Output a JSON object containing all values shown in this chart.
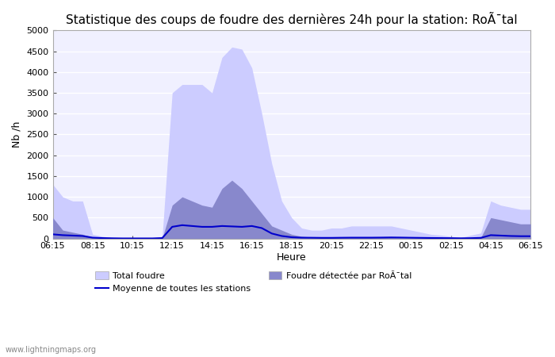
{
  "title": "Statistique des coups de foudre des dernières 24h pour la station: RoÃ¯tal",
  "ylabel": "Nb /h",
  "xlabel": "Heure",
  "watermark": "www.lightningmaps.org",
  "x_labels": [
    "06:15",
    "08:15",
    "10:15",
    "12:15",
    "14:15",
    "16:15",
    "18:15",
    "20:15",
    "22:15",
    "00:15",
    "02:15",
    "04:15",
    "06:15"
  ],
  "ylim": [
    0,
    5000
  ],
  "yticks": [
    0,
    500,
    1000,
    1500,
    2000,
    2500,
    3000,
    3500,
    4000,
    4500,
    5000
  ],
  "background_color": "#ffffff",
  "plot_bg_color": "#f0f0ff",
  "total_foudre_color": "#ccccff",
  "total_foudre_edge": "#ccccff",
  "local_foudre_color": "#8888cc",
  "local_foudre_edge": "#8888cc",
  "mean_line_color": "#0000cc",
  "grid_color": "#ffffff",
  "legend_labels": [
    "Total foudre",
    "Moyenne de toutes les stations",
    "Foudre détectée par RoÃ¯tal"
  ],
  "total_foudre_x": [
    0,
    1,
    2,
    3,
    4,
    5,
    6,
    7,
    8,
    9,
    10,
    11,
    12,
    13,
    14,
    15,
    16,
    17,
    18,
    19,
    20,
    21,
    22,
    23,
    24,
    25,
    26,
    27,
    28,
    29,
    30,
    31,
    32,
    33,
    34,
    35,
    36,
    37,
    38,
    39,
    40,
    41,
    42,
    43,
    44,
    45,
    46,
    47,
    48
  ],
  "total_foudre_y": [
    1300,
    1000,
    900,
    900,
    100,
    50,
    20,
    10,
    10,
    10,
    10,
    50,
    3500,
    3700,
    3700,
    3700,
    3500,
    4350,
    4600,
    4550,
    4100,
    3000,
    1800,
    900,
    500,
    250,
    200,
    200,
    250,
    250,
    300,
    300,
    300,
    300,
    300,
    250,
    200,
    150,
    100,
    80,
    50,
    20,
    80,
    130,
    900,
    800,
    750,
    700,
    700
  ],
  "local_foudre_x": [
    0,
    1,
    2,
    3,
    4,
    5,
    6,
    7,
    8,
    9,
    10,
    11,
    12,
    13,
    14,
    15,
    16,
    17,
    18,
    19,
    20,
    21,
    22,
    23,
    24,
    25,
    26,
    27,
    28,
    29,
    30,
    31,
    32,
    33,
    34,
    35,
    36,
    37,
    38,
    39,
    40,
    41,
    42,
    43,
    44,
    45,
    46,
    47,
    48
  ],
  "local_foudre_y": [
    500,
    200,
    150,
    100,
    30,
    10,
    5,
    2,
    2,
    2,
    2,
    10,
    800,
    1000,
    900,
    800,
    750,
    1200,
    1400,
    1200,
    900,
    600,
    300,
    200,
    100,
    50,
    30,
    25,
    20,
    20,
    20,
    20,
    20,
    20,
    20,
    15,
    10,
    10,
    10,
    10,
    5,
    2,
    10,
    20,
    500,
    450,
    400,
    350,
    350
  ],
  "mean_line_x": [
    0,
    1,
    2,
    3,
    4,
    5,
    6,
    7,
    8,
    9,
    10,
    11,
    12,
    13,
    14,
    15,
    16,
    17,
    18,
    19,
    20,
    21,
    22,
    23,
    24,
    25,
    26,
    27,
    28,
    29,
    30,
    31,
    32,
    33,
    34,
    35,
    36,
    37,
    38,
    39,
    40,
    41,
    42,
    43,
    44,
    45,
    46,
    47,
    48
  ],
  "mean_line_y": [
    100,
    80,
    70,
    60,
    20,
    10,
    5,
    2,
    2,
    2,
    2,
    10,
    280,
    320,
    300,
    280,
    280,
    300,
    290,
    280,
    300,
    250,
    120,
    60,
    30,
    20,
    18,
    15,
    15,
    18,
    20,
    20,
    20,
    22,
    25,
    22,
    18,
    15,
    12,
    10,
    8,
    5,
    8,
    15,
    80,
    70,
    60,
    55,
    55
  ]
}
